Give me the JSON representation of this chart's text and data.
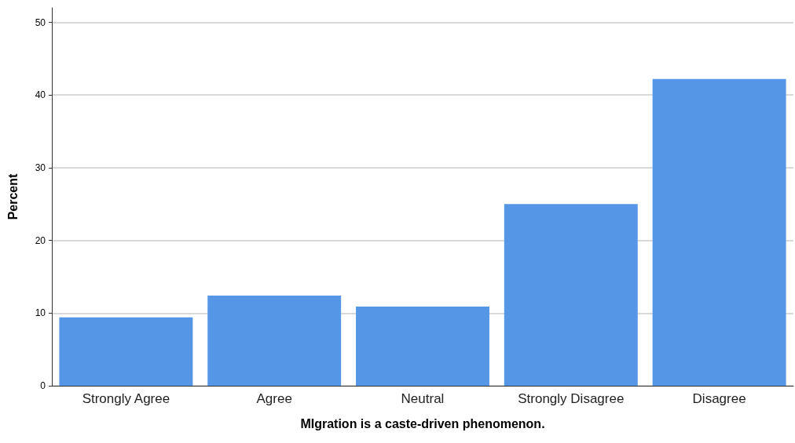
{
  "chart_data": {
    "type": "bar",
    "xlabel": "MIgration is a caste-driven phenomenon.",
    "ylabel": "Percent",
    "categories": [
      "Strongly Agree",
      "Agree",
      "Neutral",
      "Strongly Disagree",
      "Disagree"
    ],
    "values": [
      9.4,
      12.4,
      10.9,
      25.0,
      42.2
    ],
    "color": "#5596e6",
    "ylim": [
      0,
      52
    ],
    "yticks": [
      0,
      10,
      20,
      30,
      40,
      50
    ],
    "grid": "y"
  }
}
